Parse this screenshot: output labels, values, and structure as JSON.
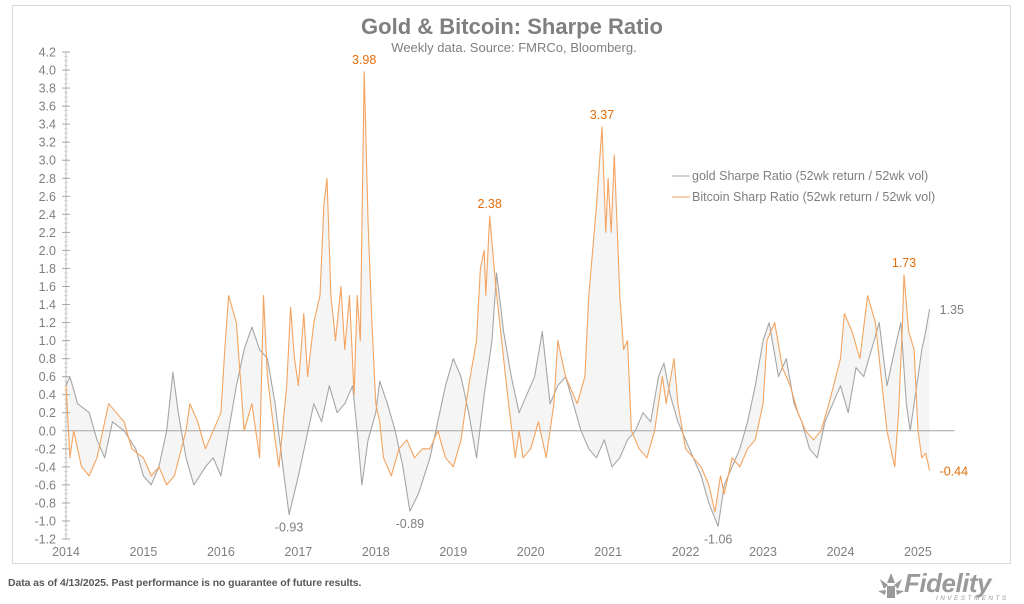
{
  "chart_data": {
    "type": "line",
    "title": "Gold & Bitcoin: Sharpe Ratio",
    "subtitle": "Weekly data.  Source: FMRCo, Bloomberg.",
    "xlabel": "",
    "ylabel": "",
    "xlim": [
      2014,
      2025.5
    ],
    "ylim": [
      -1.2,
      4.2
    ],
    "x_ticks": [
      "2014",
      "2015",
      "2016",
      "2017",
      "2018",
      "2019",
      "2020",
      "2021",
      "2022",
      "2023",
      "2024",
      "2025"
    ],
    "y_ticks": [
      "4.2",
      "4.0",
      "3.8",
      "3.6",
      "3.4",
      "3.2",
      "3.0",
      "2.8",
      "2.6",
      "2.4",
      "2.2",
      "2.0",
      "1.8",
      "1.6",
      "1.4",
      "1.2",
      "1.0",
      "0.8",
      "0.6",
      "0.4",
      "0.2",
      "0.0",
      "-0.2",
      "-0.4",
      "-0.6",
      "-0.8",
      "-1.0",
      "-1.2"
    ],
    "grid": false,
    "legend_position": "right",
    "fill_between_series": true,
    "series": [
      {
        "name": "gold Sharpe Ratio (52wk return / 52wk vol)",
        "color": "#a6a6a6",
        "x": [
          2014.0,
          2014.05,
          2014.15,
          2014.3,
          2014.4,
          2014.5,
          2014.6,
          2014.75,
          2014.9,
          2015.0,
          2015.1,
          2015.2,
          2015.3,
          2015.38,
          2015.45,
          2015.55,
          2015.65,
          2015.8,
          2015.9,
          2016.0,
          2016.1,
          2016.2,
          2016.3,
          2016.4,
          2016.5,
          2016.6,
          2016.7,
          2016.8,
          2016.88,
          2017.0,
          2017.1,
          2017.2,
          2017.3,
          2017.4,
          2017.5,
          2017.6,
          2017.7,
          2017.76,
          2017.82,
          2017.9,
          2018.0,
          2018.05,
          2018.15,
          2018.25,
          2018.35,
          2018.44,
          2018.55,
          2018.7,
          2018.8,
          2018.9,
          2019.0,
          2019.1,
          2019.2,
          2019.3,
          2019.4,
          2019.5,
          2019.56,
          2019.65,
          2019.75,
          2019.85,
          2019.95,
          2020.05,
          2020.15,
          2020.25,
          2020.35,
          2020.45,
          2020.55,
          2020.65,
          2020.75,
          2020.85,
          2020.95,
          2021.05,
          2021.15,
          2021.25,
          2021.35,
          2021.45,
          2021.55,
          2021.65,
          2021.72,
          2021.8,
          2021.9,
          2022.0,
          2022.1,
          2022.2,
          2022.3,
          2022.42,
          2022.5,
          2022.6,
          2022.7,
          2022.8,
          2022.9,
          2023.0,
          2023.08,
          2023.2,
          2023.3,
          2023.4,
          2023.5,
          2023.6,
          2023.7,
          2023.8,
          2023.9,
          2024.0,
          2024.1,
          2024.2,
          2024.3,
          2024.4,
          2024.5,
          2024.6,
          2024.7,
          2024.78,
          2024.85,
          2024.9,
          2024.95,
          2025.0,
          2025.05,
          2025.1,
          2025.15
        ],
        "y": [
          0.5,
          0.6,
          0.3,
          0.2,
          -0.1,
          -0.3,
          0.1,
          0.0,
          -0.2,
          -0.5,
          -0.6,
          -0.4,
          0.0,
          0.65,
          0.2,
          -0.3,
          -0.6,
          -0.4,
          -0.3,
          -0.5,
          0.0,
          0.5,
          0.9,
          1.15,
          0.9,
          0.8,
          0.3,
          -0.4,
          -0.93,
          -0.5,
          -0.1,
          0.3,
          0.1,
          0.5,
          0.2,
          0.3,
          0.5,
          0.0,
          -0.6,
          -0.1,
          0.2,
          0.55,
          0.3,
          0.0,
          -0.4,
          -0.89,
          -0.7,
          -0.3,
          0.1,
          0.5,
          0.8,
          0.6,
          0.2,
          -0.3,
          0.4,
          1.0,
          1.75,
          1.1,
          0.6,
          0.2,
          0.4,
          0.6,
          1.1,
          0.3,
          0.5,
          0.6,
          0.3,
          0.0,
          -0.2,
          -0.3,
          -0.1,
          -0.4,
          -0.3,
          -0.1,
          0.0,
          0.2,
          0.1,
          0.6,
          0.75,
          0.4,
          0.1,
          -0.1,
          -0.3,
          -0.5,
          -0.8,
          -1.06,
          -0.6,
          -0.4,
          -0.2,
          0.1,
          0.5,
          1.0,
          1.2,
          0.6,
          0.8,
          0.3,
          0.1,
          -0.2,
          -0.3,
          0.1,
          0.3,
          0.5,
          0.2,
          0.7,
          0.6,
          0.9,
          1.2,
          0.5,
          0.9,
          1.2,
          0.3,
          0.0,
          0.3,
          0.6,
          0.9,
          1.1,
          1.35
        ]
      },
      {
        "name": "Bitcoin Sharp Ratio (52wk return / 52wk vol)",
        "color": "#f4a460",
        "x": [
          2014.0,
          2014.05,
          2014.1,
          2014.2,
          2014.3,
          2014.4,
          2014.5,
          2014.55,
          2014.65,
          2014.75,
          2014.85,
          2015.0,
          2015.1,
          2015.2,
          2015.3,
          2015.4,
          2015.55,
          2015.6,
          2015.7,
          2015.8,
          2015.9,
          2016.0,
          2016.05,
          2016.1,
          2016.2,
          2016.3,
          2016.4,
          2016.5,
          2016.55,
          2016.6,
          2016.7,
          2016.75,
          2016.85,
          2016.9,
          2016.95,
          2017.0,
          2017.07,
          2017.12,
          2017.2,
          2017.28,
          2017.33,
          2017.37,
          2017.42,
          2017.48,
          2017.55,
          2017.6,
          2017.66,
          2017.72,
          2017.76,
          2017.8,
          2017.85,
          2017.9,
          2017.95,
          2018.0,
          2018.05,
          2018.1,
          2018.2,
          2018.3,
          2018.4,
          2018.5,
          2018.6,
          2018.7,
          2018.8,
          2018.9,
          2019.0,
          2019.1,
          2019.2,
          2019.3,
          2019.35,
          2019.4,
          2019.42,
          2019.47,
          2019.55,
          2019.6,
          2019.7,
          2019.8,
          2019.85,
          2019.9,
          2020.0,
          2020.1,
          2020.2,
          2020.3,
          2020.35,
          2020.45,
          2020.55,
          2020.6,
          2020.7,
          2020.75,
          2020.85,
          2020.92,
          2020.97,
          2021.0,
          2021.04,
          2021.08,
          2021.15,
          2021.2,
          2021.25,
          2021.3,
          2021.4,
          2021.5,
          2021.6,
          2021.7,
          2021.75,
          2021.85,
          2021.9,
          2022.0,
          2022.1,
          2022.2,
          2022.3,
          2022.38,
          2022.45,
          2022.5,
          2022.6,
          2022.7,
          2022.8,
          2022.9,
          2023.0,
          2023.05,
          2023.15,
          2023.25,
          2023.35,
          2023.45,
          2023.55,
          2023.65,
          2023.75,
          2023.85,
          2024.0,
          2024.05,
          2024.15,
          2024.25,
          2024.35,
          2024.45,
          2024.5,
          2024.6,
          2024.65,
          2024.7,
          2024.75,
          2024.8,
          2024.82,
          2024.88,
          2024.95,
          2025.0,
          2025.05,
          2025.1,
          2025.15
        ],
        "y": [
          0.5,
          -0.3,
          0.0,
          -0.4,
          -0.5,
          -0.3,
          0.1,
          0.3,
          0.2,
          0.1,
          -0.2,
          -0.3,
          -0.5,
          -0.4,
          -0.6,
          -0.5,
          0.0,
          0.3,
          0.1,
          -0.2,
          0.0,
          0.2,
          0.9,
          1.5,
          1.2,
          0.0,
          0.3,
          -0.3,
          1.5,
          0.6,
          -0.1,
          -0.4,
          0.5,
          1.37,
          0.8,
          0.5,
          1.3,
          0.6,
          1.2,
          1.5,
          2.5,
          2.8,
          1.5,
          1.0,
          1.6,
          0.9,
          1.5,
          0.4,
          1.5,
          1.0,
          3.98,
          2.3,
          1.2,
          0.3,
          0.1,
          -0.3,
          -0.5,
          -0.2,
          -0.1,
          -0.3,
          -0.2,
          -0.2,
          0.0,
          -0.3,
          -0.4,
          -0.1,
          0.5,
          1.0,
          1.8,
          2.0,
          1.5,
          2.38,
          1.6,
          1.2,
          0.4,
          -0.3,
          0.0,
          -0.3,
          -0.2,
          0.1,
          -0.3,
          0.3,
          1.0,
          0.6,
          0.4,
          0.3,
          0.6,
          1.5,
          2.5,
          3.37,
          2.2,
          2.8,
          2.2,
          3.06,
          1.5,
          0.9,
          1.0,
          0.0,
          -0.2,
          -0.3,
          0.0,
          0.6,
          0.3,
          0.8,
          0.3,
          -0.2,
          -0.3,
          -0.4,
          -0.6,
          -0.9,
          -0.5,
          -0.7,
          -0.3,
          -0.4,
          -0.2,
          -0.1,
          0.3,
          1.0,
          1.2,
          0.7,
          0.5,
          0.2,
          0.0,
          -0.1,
          0.0,
          0.3,
          0.8,
          1.3,
          1.1,
          0.8,
          1.5,
          1.2,
          0.8,
          0.0,
          -0.2,
          -0.4,
          0.2,
          1.2,
          1.73,
          1.1,
          0.9,
          0.0,
          -0.3,
          -0.25,
          -0.44
        ]
      }
    ],
    "annotations": [
      {
        "text": "3.98",
        "x": 2017.85,
        "y": 3.98,
        "series": 1,
        "position": "above"
      },
      {
        "text": "2.38",
        "x": 2019.47,
        "y": 2.38,
        "series": 1,
        "position": "above"
      },
      {
        "text": "3.37",
        "x": 2020.92,
        "y": 3.37,
        "series": 1,
        "position": "above"
      },
      {
        "text": "1.73",
        "x": 2024.82,
        "y": 1.73,
        "series": 1,
        "position": "above"
      },
      {
        "text": "-0.44",
        "x": 2025.15,
        "y": -0.44,
        "series": 1,
        "position": "right"
      },
      {
        "text": "1.35",
        "x": 2025.15,
        "y": 1.35,
        "series": 0,
        "position": "right"
      },
      {
        "text": "-0.93",
        "x": 2016.88,
        "y": -0.93,
        "series": 0,
        "position": "below"
      },
      {
        "text": "-0.89",
        "x": 2018.44,
        "y": -0.89,
        "series": 0,
        "position": "below"
      },
      {
        "text": "-1.06",
        "x": 2022.42,
        "y": -1.06,
        "series": 0,
        "position": "below"
      }
    ],
    "colors": {
      "axis_text": "#7f7f7f",
      "gold": "#a6a6a6",
      "bitcoin": "#f4a460",
      "bitcoin_label": "#e46c0a",
      "fill": "#f2f2f2"
    }
  },
  "footer": {
    "disclaimer": "Data as of 4/13/2025. Past performance is no guarantee of future results."
  },
  "logo": {
    "brand": "Fidelity",
    "sub": "INVESTMENTS"
  }
}
